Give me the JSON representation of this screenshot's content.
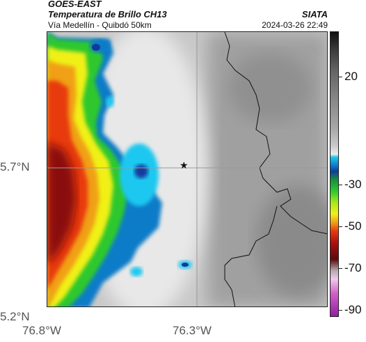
{
  "header": {
    "satellite": "GOES-EAST",
    "product": "Temperatura de Brillo CH13",
    "route": "Vía Medellín - Quibdó 50km",
    "organization": "SIATA",
    "datetime": "2024-03-26 22:49"
  },
  "map": {
    "lat_ticks": [
      "5.7°N",
      "5.2°N"
    ],
    "lon_ticks": [
      "76.8°W",
      "76.3°W"
    ],
    "marker_icon": "star-icon"
  },
  "colorbar": {
    "ticks": [
      "20",
      "-30",
      "-50",
      "-70",
      "-90"
    ]
  }
}
